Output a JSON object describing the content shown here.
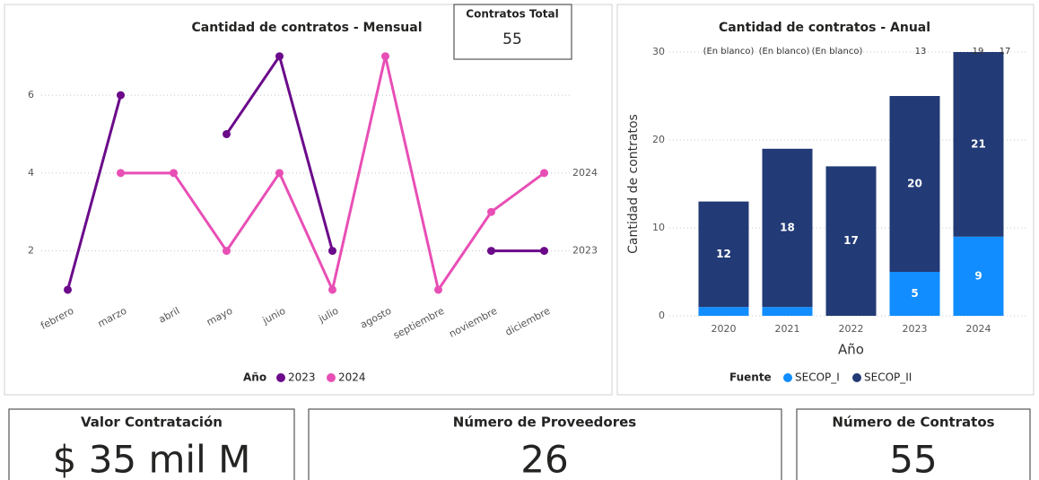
{
  "chart_data": [
    {
      "type": "line",
      "title": "Cantidad de contratos - Mensual",
      "categories": [
        "febrero",
        "marzo",
        "abril",
        "mayo",
        "junio",
        "julio",
        "agosto",
        "septiembre",
        "noviembre",
        "diciembre"
      ],
      "series": [
        {
          "name": "2023",
          "color": "#6b0a8a",
          "values": [
            1,
            6,
            null,
            5,
            7,
            2,
            null,
            null,
            2,
            2
          ]
        },
        {
          "name": "2024",
          "color": "#e84fb5",
          "values": [
            null,
            4,
            4,
            2,
            4,
            1,
            7,
            1,
            3,
            4
          ]
        }
      ],
      "ylim": [
        0.7,
        7.5
      ],
      "yticks": [
        2,
        4,
        6
      ],
      "grid": true,
      "legend_title": "Año"
    },
    {
      "type": "stacked_bar",
      "title": "Cantidad de contratos - Anual",
      "categories": [
        "2020",
        "2021",
        "2022",
        "2023",
        "2024"
      ],
      "series": [
        {
          "name": "SECOP_I",
          "color": "#118dff",
          "values": [
            1,
            1,
            null,
            5,
            9
          ],
          "value_labels": [
            null,
            null,
            null,
            "5",
            "9"
          ]
        },
        {
          "name": "SECOP_II",
          "color": "#223a75",
          "values": [
            12,
            18,
            17,
            20,
            21
          ]
        }
      ],
      "ylim": [
        0,
        30
      ],
      "yticks": [
        0,
        10,
        20,
        30
      ],
      "grid": true,
      "y_label": "Cantidad de contratos",
      "x_label": "Año",
      "legend_title": "Fuente",
      "annotations": [
        "(En blanco)",
        "(En blanco)",
        "(En blanco)",
        "13",
        "19",
        "17"
      ]
    }
  ],
  "cards": [
    {
      "title": "Contratos Total",
      "value": 55
    },
    {
      "title": "Valor Contratación",
      "value": "$ 35 mil M"
    },
    {
      "title": "Número de Proveedores",
      "value": 26
    },
    {
      "title": "Número de Contratos",
      "value": 55
    }
  ]
}
